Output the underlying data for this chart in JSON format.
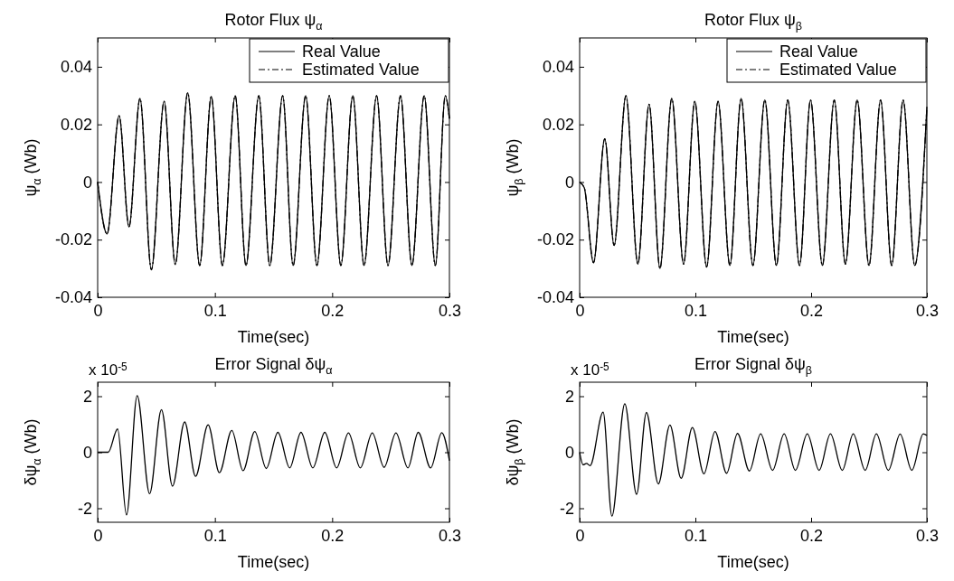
{
  "chart_data": [
    {
      "type": "line",
      "title": "Rotor Flux ψ$_{α}$",
      "xlabel": "Time(sec)",
      "ylabel": "ψ$_{α}$ (Wb)",
      "xlim": [
        0,
        0.3
      ],
      "ylim": [
        -0.04,
        0.05
      ],
      "xticks": [
        0,
        0.1,
        0.2,
        0.3
      ],
      "yticks": [
        -0.04,
        -0.02,
        0,
        0.02,
        0.04
      ],
      "legend": "top right",
      "x": [
        0,
        0.008,
        0.0183,
        0.0267,
        0.0361,
        0.0458,
        0.0567,
        0.0662,
        0.0768,
        0.087,
        0.0969,
        0.1064,
        0.1173,
        0.1265,
        0.1374,
        0.1468,
        0.1578,
        0.1667,
        0.1774,
        0.187,
        0.1975,
        0.2074,
        0.2176,
        0.2272,
        0.2379,
        0.2476,
        0.2583,
        0.268,
        0.2785,
        0.288,
        0.2965,
        0.3
      ],
      "series": [
        {
          "name": "Real Value",
          "color": "#000000",
          "line_style": "solid",
          "values": [
            0,
            -0.018,
            0.023,
            -0.0156,
            0.029,
            -0.0305,
            0.028,
            -0.0286,
            0.031,
            -0.029,
            0.0297,
            -0.029,
            0.03,
            -0.029,
            0.03,
            -0.029,
            0.03,
            -0.029,
            0.03,
            -0.029,
            0.03,
            -0.029,
            0.03,
            -0.029,
            0.03,
            -0.029,
            0.03,
            -0.029,
            0.03,
            -0.029,
            0.03,
            0.022
          ]
        },
        {
          "name": "Estimated Value",
          "color": "#000000",
          "line_style": "dashed",
          "values": [
            0,
            -0.018,
            0.023,
            -0.0156,
            0.029,
            -0.0305,
            0.028,
            -0.0286,
            0.031,
            -0.029,
            0.0297,
            -0.029,
            0.03,
            -0.029,
            0.03,
            -0.029,
            0.03,
            -0.029,
            0.03,
            -0.029,
            0.03,
            -0.029,
            0.03,
            -0.029,
            0.03,
            -0.029,
            0.03,
            -0.029,
            0.03,
            -0.029,
            0.03,
            0.022
          ]
        }
      ]
    },
    {
      "type": "line",
      "title": "Rotor Flux ψ$_{β}$",
      "xlabel": "Time(sec)",
      "ylabel": "ψ$_{β}$ (Wb)",
      "xlim": [
        0,
        0.3
      ],
      "ylim": [
        -0.04,
        0.05
      ],
      "xticks": [
        0,
        0.1,
        0.2,
        0.3
      ],
      "yticks": [
        -0.04,
        -0.02,
        0,
        0.02,
        0.04
      ],
      "legend": "top right",
      "x": [
        0,
        0.004,
        0.012,
        0.0217,
        0.0298,
        0.04,
        0.0503,
        0.06,
        0.0694,
        0.0796,
        0.0898,
        0.0995,
        0.1097,
        0.1196,
        0.1298,
        0.1395,
        0.1497,
        0.16,
        0.17,
        0.1798,
        0.19,
        0.1995,
        0.2097,
        0.22,
        0.2296,
        0.2398,
        0.25,
        0.26,
        0.2696,
        0.2795,
        0.2895,
        0.3
      ],
      "series": [
        {
          "name": "Real Value",
          "color": "#000000",
          "line_style": "solid",
          "values": [
            0,
            -0.002,
            -0.028,
            0.015,
            -0.022,
            0.03,
            -0.0285,
            0.027,
            -0.03,
            0.029,
            -0.0285,
            0.028,
            -0.0295,
            0.028,
            -0.029,
            0.029,
            -0.029,
            0.0285,
            -0.029,
            0.0285,
            -0.029,
            0.0285,
            -0.029,
            0.0285,
            -0.0285,
            0.0285,
            -0.029,
            0.0285,
            -0.029,
            0.0285,
            -0.029,
            0.026
          ]
        },
        {
          "name": "Estimated Value",
          "color": "#000000",
          "line_style": "dashed",
          "values": [
            0,
            -0.002,
            -0.028,
            0.015,
            -0.022,
            0.03,
            -0.0285,
            0.027,
            -0.03,
            0.029,
            -0.0285,
            0.028,
            -0.0295,
            0.028,
            -0.029,
            0.029,
            -0.029,
            0.0285,
            -0.029,
            0.0285,
            -0.029,
            0.0285,
            -0.029,
            0.0285,
            -0.0285,
            0.0285,
            -0.029,
            0.0285,
            -0.029,
            0.0285,
            -0.029,
            0.026
          ]
        }
      ]
    },
    {
      "type": "line",
      "title": "Error Signal δψ$_{α}$",
      "xlabel": "Time(sec)",
      "ylabel": "δψ$_{α}$ (Wb)",
      "annotations": [
        "x 10$^{-5}$"
      ],
      "xlim": [
        0,
        0.3
      ],
      "ylim": [
        -2.5,
        2.5
      ],
      "xticks": [
        0,
        0.1,
        0.2,
        0.3
      ],
      "yticks": [
        -2,
        0,
        2
      ],
      "x": [
        0,
        0.009,
        0.017,
        0.0246,
        0.0337,
        0.0443,
        0.0544,
        0.0638,
        0.0742,
        0.0835,
        0.0942,
        0.1038,
        0.1144,
        0.124,
        0.134,
        0.1438,
        0.1537,
        0.1638,
        0.1734,
        0.1835,
        0.1937,
        0.2038,
        0.2139,
        0.224,
        0.2342,
        0.2443,
        0.2544,
        0.2646,
        0.2734,
        0.284,
        0.2935,
        0.3
      ],
      "series": [
        {
          "color": "#000000",
          "line_style": "solid",
          "values": [
            0,
            0,
            0.83,
            -2.24,
            2.02,
            -1.48,
            1.52,
            -1.21,
            1.08,
            -0.86,
            0.98,
            -0.73,
            0.78,
            -0.66,
            0.74,
            -0.58,
            0.71,
            -0.56,
            0.71,
            -0.56,
            0.71,
            -0.56,
            0.69,
            -0.56,
            0.69,
            -0.54,
            0.69,
            -0.56,
            0.71,
            -0.56,
            0.7,
            -0.3
          ]
        }
      ]
    },
    {
      "type": "line",
      "title": "Error Signal δψ$_{β}$",
      "xlabel": "Time(sec)",
      "ylabel": "δψ$_{β}$ (Wb)",
      "annotations": [
        "x 10$^{-5}$"
      ],
      "xlim": [
        0,
        0.3
      ],
      "ylim": [
        -2.5,
        2.5
      ],
      "xticks": [
        0,
        0.1,
        0.2,
        0.3
      ],
      "yticks": [
        -2,
        0,
        2
      ],
      "x": [
        0,
        0.003,
        0.006,
        0.009,
        0.0203,
        0.0279,
        0.039,
        0.0492,
        0.0577,
        0.068,
        0.078,
        0.0877,
        0.0974,
        0.1074,
        0.117,
        0.127,
        0.1364,
        0.1467,
        0.1564,
        0.1667,
        0.1767,
        0.1864,
        0.1967,
        0.2069,
        0.2167,
        0.2269,
        0.2364,
        0.2467,
        0.2564,
        0.2667,
        0.2769,
        0.287,
        0.2969,
        0.3
      ],
      "series": [
        {
          "color": "#000000",
          "line_style": "solid",
          "values": [
            0,
            -0.45,
            -0.4,
            -0.48,
            1.43,
            -2.28,
            1.73,
            -1.5,
            1.42,
            -1.13,
            0.97,
            -0.93,
            0.88,
            -0.77,
            0.74,
            -0.75,
            0.67,
            -0.67,
            0.66,
            -0.65,
            0.66,
            -0.65,
            0.66,
            -0.65,
            0.66,
            -0.65,
            0.66,
            -0.65,
            0.66,
            -0.65,
            0.65,
            -0.65,
            0.66,
            0.6
          ]
        }
      ]
    }
  ]
}
